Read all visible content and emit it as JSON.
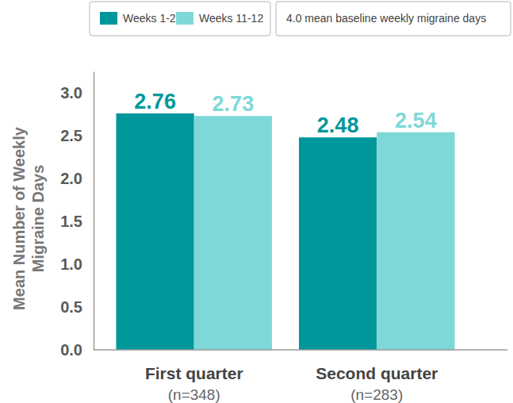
{
  "chart_data": {
    "type": "bar",
    "y_label": "Mean Number of Weekly\nMigraine Days",
    "annotation": "4.0 mean baseline weekly migraine days",
    "categories": [
      "First quarter\n(n=348)",
      "Second quarter\n(n=283)"
    ],
    "series": [
      {
        "name": "Weeks 1-2",
        "color": "#00979b",
        "values": [
          2.76,
          2.48
        ]
      },
      {
        "name": "Weeks 11-12",
        "color": "#7fd8d8",
        "values": [
          2.73,
          2.54
        ]
      }
    ],
    "ylim": [
      0,
      3.25
    ],
    "yticks": [
      {
        "value": 0,
        "label": "0.0"
      },
      0.5,
      {
        "value": 1,
        "label": "1.0"
      },
      1.5,
      {
        "value": 2,
        "label": "2.0"
      },
      2.5,
      {
        "value": 3,
        "label": "3.0"
      }
    ],
    "grid": false,
    "legend": "top",
    "data_labels": true
  }
}
